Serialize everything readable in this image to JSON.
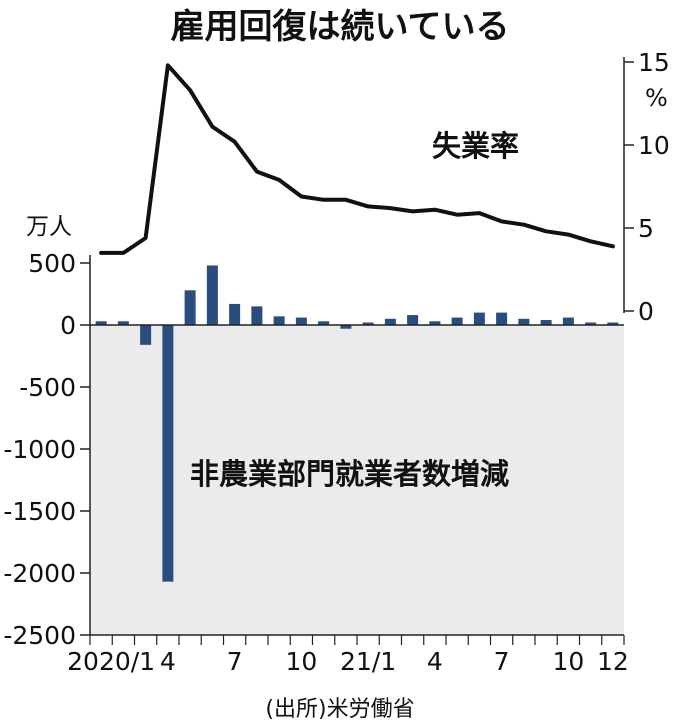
{
  "chart_data": {
    "type": "bar",
    "title": "雇用回復は続いている",
    "source": "(出所)米労働省",
    "bar_label": "非農業部門就業者数増減",
    "line_label": "失業率",
    "left_unit": "万人",
    "right_unit": "%",
    "colors": {
      "bar": "#284d7e",
      "line": "#111111",
      "negative_area": "#ebebeb"
    },
    "x_tick_labels": [
      {
        "index": 0,
        "label": "2020/1"
      },
      {
        "index": 3,
        "label": "4"
      },
      {
        "index": 6,
        "label": "7"
      },
      {
        "index": 9,
        "label": "10"
      },
      {
        "index": 12,
        "label": "21/1"
      },
      {
        "index": 15,
        "label": "4"
      },
      {
        "index": 18,
        "label": "7"
      },
      {
        "index": 21,
        "label": "10"
      },
      {
        "index": 23,
        "label": "12"
      }
    ],
    "left_ticks": [
      500,
      0,
      -500,
      -1000,
      -1500,
      -2000,
      -2500
    ],
    "left_ylim": [
      -2500,
      500
    ],
    "right_ticks": [
      15,
      10,
      5,
      0
    ],
    "right_ylim": [
      0,
      15
    ],
    "bar_values": [
      30,
      30,
      -160,
      -2070,
      280,
      480,
      170,
      150,
      70,
      60,
      30,
      -30,
      20,
      50,
      80,
      30,
      60,
      100,
      100,
      50,
      40,
      60,
      20,
      20
    ],
    "line_values": [
      3.5,
      3.5,
      4.4,
      14.8,
      13.3,
      11.1,
      10.2,
      8.4,
      7.9,
      6.9,
      6.7,
      6.7,
      6.3,
      6.2,
      6.0,
      6.1,
      5.8,
      5.9,
      5.4,
      5.2,
      4.8,
      4.6,
      4.2,
      3.9
    ]
  }
}
